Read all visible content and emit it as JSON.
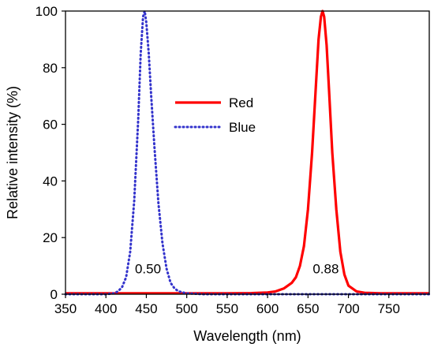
{
  "chart_data": {
    "type": "line",
    "xlabel": "Wavelength (nm)",
    "ylabel": "Relative intensity (%)",
    "xlim": [
      350,
      800
    ],
    "ylim": [
      0,
      100
    ],
    "x_ticks": [
      "350",
      "400",
      "450",
      "500",
      "550",
      "600",
      "650",
      "700",
      "750"
    ],
    "y_ticks": [
      "0",
      "20",
      "40",
      "60",
      "80",
      "100"
    ],
    "legend_position": "center",
    "series": [
      {
        "name": "Red",
        "color": "#ff0000",
        "style": "solid",
        "x": [
          350,
          400,
          450,
          500,
          550,
          580,
          600,
          610,
          620,
          630,
          635,
          640,
          645,
          650,
          655,
          660,
          663,
          666,
          668,
          670,
          673,
          676,
          680,
          685,
          690,
          695,
          700,
          710,
          720,
          740,
          760,
          800
        ],
        "y": [
          0.3,
          0.3,
          0.3,
          0.3,
          0.3,
          0.4,
          0.6,
          1,
          2,
          4,
          6,
          10,
          17,
          30,
          50,
          75,
          90,
          98,
          100,
          98,
          88,
          72,
          50,
          30,
          15,
          7,
          3,
          1,
          0.5,
          0.3,
          0.3,
          0.3
        ]
      },
      {
        "name": "Blue",
        "color": "#3333cc",
        "style": "dotted",
        "x": [
          350,
          400,
          410,
          415,
          420,
          425,
          430,
          435,
          440,
          443,
          446,
          448,
          450,
          453,
          456,
          460,
          465,
          470,
          475,
          480,
          485,
          490,
          500,
          520,
          550,
          600,
          650,
          700,
          750,
          800
        ],
        "y": [
          0,
          0,
          0.3,
          1,
          2.5,
          6,
          15,
          33,
          62,
          85,
          98,
          100,
          96,
          85,
          70,
          52,
          32,
          18,
          9,
          4,
          2,
          1,
          0.3,
          0,
          0,
          0,
          0,
          0,
          0,
          0
        ]
      }
    ],
    "annotations": [
      {
        "text": "0.50",
        "x": 452,
        "y": 9
      },
      {
        "text": "0.88",
        "x": 672,
        "y": 9
      }
    ]
  }
}
